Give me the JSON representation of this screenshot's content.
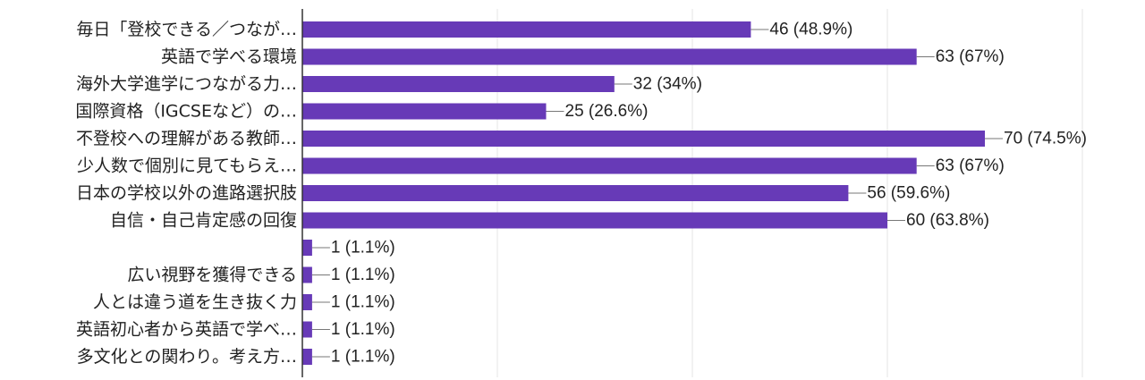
{
  "chart_data": {
    "type": "bar",
    "orientation": "horizontal",
    "categories": [
      "毎日「登校できる／つなが…",
      "英語で学べる環境",
      "海外大学進学につながる力…",
      "国際資格（IGCSEなど）の…",
      "不登校への理解がある教師…",
      "少人数で個別に見てもらえ…",
      "日本の学校以外の進路選択肢",
      "自信・自己肯定感の回復",
      "",
      "広い視野を獲得できる",
      "人とは違う道を生き抜く力",
      "英語初心者から英語で学べ…",
      "多文化との関わり。考え方…"
    ],
    "values": [
      46,
      63,
      32,
      25,
      70,
      63,
      56,
      60,
      1,
      1,
      1,
      1,
      1
    ],
    "value_labels": [
      "46 (48.9%)",
      "63 (67%)",
      "32 (34%)",
      "25 (26.6%)",
      "70 (74.5%)",
      "63 (67%)",
      "56 (59.6%)",
      "60 (63.8%)",
      "1 (1.1%)",
      "1 (1.1%)",
      "1 (1.1%)",
      "1 (1.1%)",
      "1 (1.1%)"
    ],
    "xlim": [
      0,
      80
    ],
    "gridlines_at": [
      0,
      20,
      40,
      60,
      80
    ],
    "grid": true,
    "bar_color": "#673ab7",
    "leader_color": "#777777",
    "grid_color": "#e4e4e4",
    "axis_color": "#333333"
  }
}
